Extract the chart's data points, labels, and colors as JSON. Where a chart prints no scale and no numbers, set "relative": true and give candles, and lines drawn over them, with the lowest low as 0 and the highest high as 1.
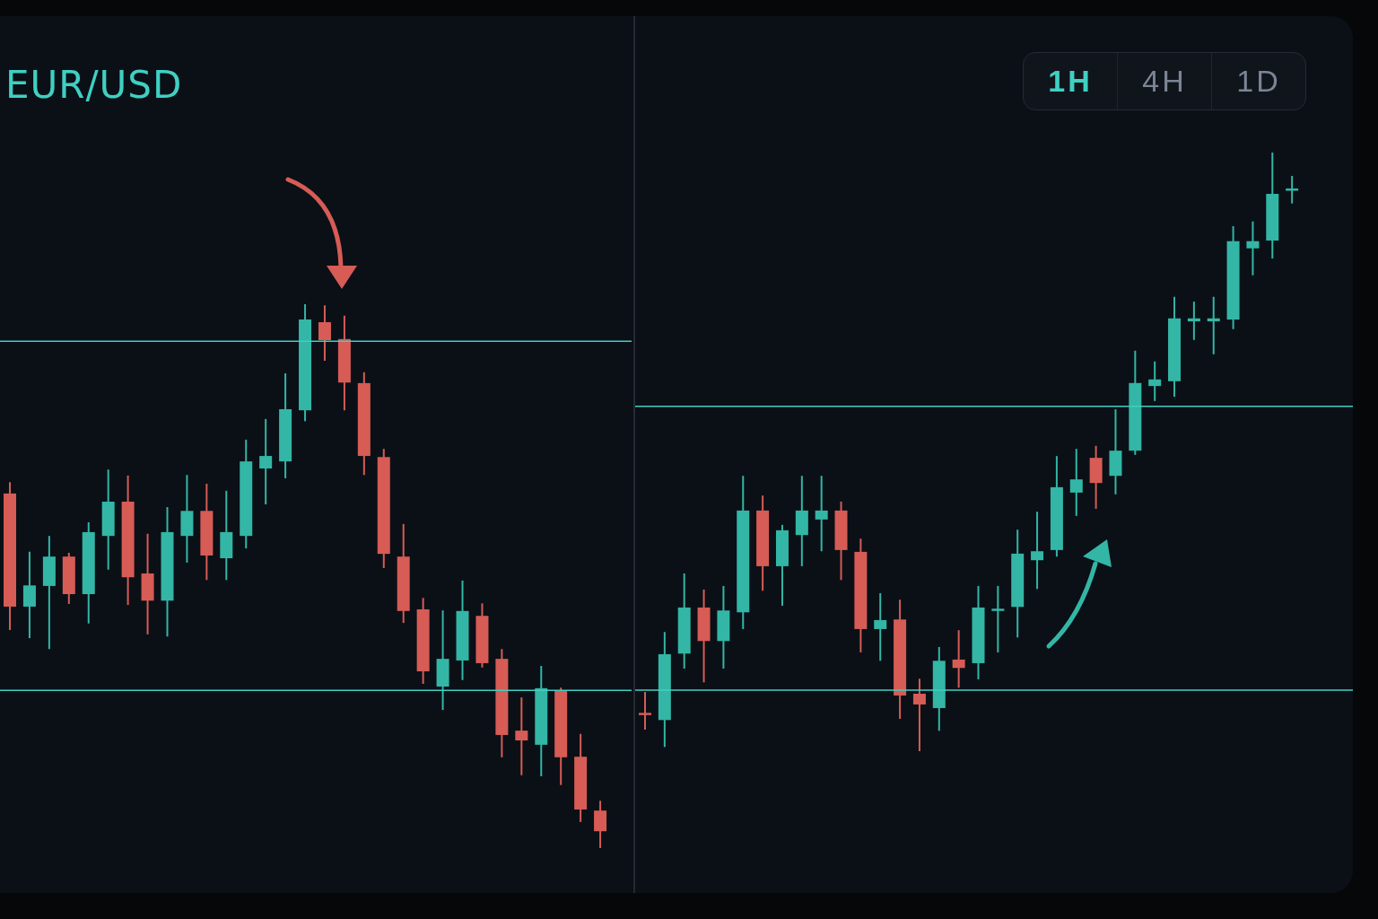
{
  "chart_data": [
    {
      "type": "candlestick",
      "title": "EUR/USD",
      "relative": true,
      "categories": [
        null,
        null,
        null,
        null,
        null,
        null,
        null,
        null,
        null,
        null,
        null,
        null,
        null,
        null,
        null,
        null,
        null,
        null,
        null,
        null,
        null,
        null,
        null,
        null,
        null,
        null,
        null,
        null,
        null,
        null,
        null
      ],
      "ohlc": [
        [
          0.652,
          0.673,
          0.401,
          0.444
        ],
        [
          0.444,
          0.545,
          0.386,
          0.483
        ],
        [
          0.482,
          0.574,
          0.366,
          0.536
        ],
        [
          0.536,
          0.543,
          0.449,
          0.467
        ],
        [
          0.467,
          0.599,
          0.413,
          0.581
        ],
        [
          0.574,
          0.696,
          0.512,
          0.637
        ],
        [
          0.637,
          0.685,
          0.447,
          0.498
        ],
        [
          0.505,
          0.578,
          0.393,
          0.455
        ],
        [
          0.455,
          0.627,
          0.389,
          0.581
        ],
        [
          0.574,
          0.686,
          0.525,
          0.62
        ],
        [
          0.62,
          0.67,
          0.493,
          0.538
        ],
        [
          0.533,
          0.657,
          0.493,
          0.581
        ],
        [
          0.574,
          0.751,
          0.551,
          0.711
        ],
        [
          0.698,
          0.789,
          0.632,
          0.721
        ],
        [
          0.711,
          0.873,
          0.68,
          0.807
        ],
        [
          0.805,
          1,
          0.785,
          0.972
        ],
        [
          0.967,
          0.998,
          0.896,
          0.934
        ],
        [
          0.936,
          0.979,
          0.805,
          0.856
        ],
        [
          0.855,
          0.875,
          0.686,
          0.721
        ],
        [
          0.719,
          0.734,
          0.515,
          0.541
        ],
        [
          0.536,
          0.596,
          0.414,
          0.436
        ],
        [
          0.439,
          0.46,
          0.302,
          0.325
        ],
        [
          0.297,
          0.437,
          0.254,
          0.348
        ],
        [
          0.345,
          0.492,
          0.309,
          0.436
        ],
        [
          0.427,
          0.45,
          0.332,
          0.34
        ],
        [
          0.348,
          0.366,
          0.167,
          0.208
        ],
        [
          0.216,
          0.277,
          0.134,
          0.198
        ],
        [
          0.19,
          0.335,
          0.132,
          0.294
        ],
        [
          0.289,
          0.295,
          0.116,
          0.167
        ],
        [
          0.168,
          0.21,
          0.048,
          0.071
        ],
        [
          0.069,
          0.087,
          0,
          0.031
        ]
      ],
      "colors": [
        "#d65c55",
        "#33b6a5",
        "#33b6a5",
        "#d65c55",
        "#33b6a5",
        "#33b6a5",
        "#d65c55",
        "#d65c55",
        "#33b6a5",
        "#33b6a5",
        "#d65c55",
        "#33b6a5",
        "#33b6a5",
        "#33b6a5",
        "#33b6a5",
        "#33b6a5",
        "#d65c55",
        "#d65c55",
        "#d65c55",
        "#d65c55",
        "#d65c55",
        "#d65c55",
        "#33b6a5",
        "#33b6a5",
        "#d65c55",
        "#d65c55",
        "#d65c55",
        "#33b6a5",
        "#d65c55",
        "#d65c55",
        "#d65c55"
      ],
      "ref_lines": [
        {
          "axis": "y",
          "value": 0.932,
          "color": "#3fd0c2"
        },
        {
          "axis": "y",
          "value": 0.29,
          "color": "#3fd0c2"
        }
      ]
    },
    {
      "type": "candlestick",
      "relative": true,
      "categories": [
        null,
        null,
        null,
        null,
        null,
        null,
        null,
        null,
        null,
        null,
        null,
        null,
        null,
        null,
        null,
        null,
        null,
        null,
        null,
        null,
        null,
        null,
        null,
        null,
        null,
        null,
        null,
        null,
        null,
        null,
        null,
        null,
        null,
        null
      ],
      "ohlc": [
        [
          0.064,
          0.099,
          0.036,
          0.061
        ],
        [
          0.052,
          0.199,
          0.007,
          0.162
        ],
        [
          0.163,
          0.297,
          0.138,
          0.24
        ],
        [
          0.24,
          0.27,
          0.115,
          0.184
        ],
        [
          0.184,
          0.276,
          0.138,
          0.235
        ],
        [
          0.232,
          0.46,
          0.204,
          0.402
        ],
        [
          0.402,
          0.427,
          0.268,
          0.309
        ],
        [
          0.309,
          0.378,
          0.243,
          0.369
        ],
        [
          0.361,
          0.46,
          0.309,
          0.402
        ],
        [
          0.387,
          0.46,
          0.334,
          0.402
        ],
        [
          0.402,
          0.417,
          0.286,
          0.336
        ],
        [
          0.333,
          0.355,
          0.165,
          0.204
        ],
        [
          0.204,
          0.264,
          0.151,
          0.219
        ],
        [
          0.22,
          0.253,
          0.054,
          0.093
        ],
        [
          0.096,
          0.121,
          0,
          0.078
        ],
        [
          0.072,
          0.174,
          0.034,
          0.151
        ],
        [
          0.153,
          0.202,
          0.106,
          0.139
        ],
        [
          0.147,
          0.276,
          0.12,
          0.24
        ],
        [
          0.235,
          0.276,
          0.165,
          0.238
        ],
        [
          0.241,
          0.37,
          0.19,
          0.33
        ],
        [
          0.319,
          0.4,
          0.271,
          0.334
        ],
        [
          0.336,
          0.493,
          0.325,
          0.441
        ],
        [
          0.432,
          0.505,
          0.393,
          0.454
        ],
        [
          0.49,
          0.51,
          0.405,
          0.448
        ],
        [
          0.46,
          0.571,
          0.429,
          0.502
        ],
        [
          0.502,
          0.669,
          0.495,
          0.615
        ],
        [
          0.61,
          0.651,
          0.585,
          0.621
        ],
        [
          0.618,
          0.759,
          0.592,
          0.723
        ],
        [
          0.718,
          0.751,
          0.687,
          0.723
        ],
        [
          0.718,
          0.759,
          0.663,
          0.723
        ],
        [
          0.721,
          0.877,
          0.705,
          0.852
        ],
        [
          0.84,
          0.885,
          0.795,
          0.852
        ],
        [
          0.853,
          1,
          0.823,
          0.931
        ],
        [
          0.937,
          0.961,
          0.915,
          0.94
        ]
      ],
      "colors": [
        "#d65c55",
        "#33b6a5",
        "#33b6a5",
        "#d65c55",
        "#33b6a5",
        "#33b6a5",
        "#d65c55",
        "#33b6a5",
        "#33b6a5",
        "#33b6a5",
        "#d65c55",
        "#d65c55",
        "#33b6a5",
        "#d65c55",
        "#d65c55",
        "#33b6a5",
        "#d65c55",
        "#33b6a5",
        "#33b6a5",
        "#33b6a5",
        "#33b6a5",
        "#33b6a5",
        "#33b6a5",
        "#d65c55",
        "#33b6a5",
        "#33b6a5",
        "#33b6a5",
        "#33b6a5",
        "#33b6a5",
        "#33b6a5",
        "#33b6a5",
        "#33b6a5",
        "#33b6a5",
        "#33b6a5"
      ],
      "ref_lines": [
        {
          "axis": "y",
          "value": 0.576,
          "color": "#3fd0c2"
        },
        {
          "axis": "y",
          "value": 0.102,
          "color": "#3fd0c2"
        }
      ],
      "annotations": [
        "1H",
        "4H",
        "1D"
      ]
    }
  ]
}
